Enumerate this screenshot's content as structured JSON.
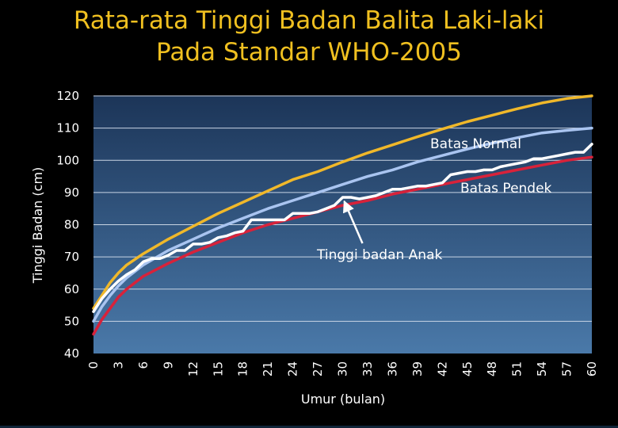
{
  "slide": {
    "title_line1": "Rata-rata Tinggi Badan Balita Laki-laki",
    "title_line2": "Pada Standar WHO-2005"
  },
  "colors": {
    "plot_bg_top": "#1c3558",
    "plot_bg_bottom": "#4a79a9",
    "upper": "#f0b82a",
    "median": "#a9c4f0",
    "lower": "#d8223a",
    "child": "#ffffff",
    "title": "#f0c020"
  },
  "chart_data": {
    "type": "line",
    "xlabel": "Umur (bulan)",
    "ylabel": "Tinggi Badan  (cm)",
    "xlim": [
      0,
      60
    ],
    "ylim": [
      40,
      120
    ],
    "grid": true,
    "x_ticks": [
      "0",
      "3",
      "6",
      "9",
      "12",
      "15",
      "18",
      "21",
      "24",
      "27",
      "30",
      "33",
      "36",
      "39",
      "42",
      "45",
      "48",
      "51",
      "54",
      "57",
      "60"
    ],
    "y_ticks": [
      "40",
      "50",
      "60",
      "70",
      "80",
      "90",
      "100",
      "110",
      "120"
    ],
    "series": [
      {
        "name": "upper",
        "color": "#f0b82a",
        "x": [
          0,
          1,
          2,
          3,
          4,
          6,
          9,
          12,
          15,
          18,
          21,
          24,
          27,
          30,
          33,
          36,
          39,
          42,
          45,
          48,
          51,
          54,
          57,
          60
        ],
        "y": [
          54,
          58,
          62,
          65,
          67.5,
          71,
          75.5,
          79.5,
          83.5,
          87,
          90.5,
          94,
          96.5,
          99.5,
          102.3,
          104.8,
          107.3,
          109.7,
          112,
          114,
          116,
          117.8,
          119.2,
          120
        ]
      },
      {
        "name": "Batas Normal",
        "color": "#a9c4f0",
        "x": [
          0,
          1,
          2,
          3,
          4,
          6,
          9,
          12,
          15,
          18,
          21,
          24,
          27,
          30,
          33,
          36,
          39,
          42,
          45,
          48,
          51,
          54,
          57,
          60
        ],
        "y": [
          50,
          54.5,
          58,
          61,
          63.5,
          67.5,
          72,
          75.5,
          79,
          82,
          85,
          87.5,
          90,
          92.5,
          95,
          97,
          99.5,
          101.5,
          103.5,
          105.3,
          107,
          108.5,
          109.3,
          110
        ]
      },
      {
        "name": "Batas Pendek",
        "color": "#d8223a",
        "x": [
          0,
          1,
          2,
          3,
          4,
          6,
          9,
          12,
          15,
          18,
          21,
          24,
          27,
          30,
          33,
          36,
          39,
          42,
          45,
          48,
          51,
          54,
          57,
          60
        ],
        "y": [
          46,
          50.5,
          54,
          57.5,
          60,
          64,
          68,
          71.5,
          74.5,
          77.5,
          80,
          82,
          84,
          86,
          87.5,
          89.5,
          91,
          92.5,
          94,
          95.5,
          97,
          98.5,
          100,
          101
        ]
      },
      {
        "name": "Tinggi badan Anak",
        "color": "#ffffff",
        "x": [
          0,
          1,
          2,
          3,
          4,
          5,
          6,
          7,
          8,
          9,
          10,
          11,
          12,
          13,
          14,
          15,
          16,
          17,
          18,
          19,
          20,
          21,
          22,
          23,
          24,
          25,
          26,
          27,
          28,
          29,
          30,
          31,
          32,
          33,
          34,
          35,
          36,
          37,
          38,
          39,
          40,
          41,
          42,
          43,
          44,
          45,
          46,
          47,
          48,
          49,
          50,
          51,
          52,
          53,
          54,
          55,
          56,
          57,
          58,
          59,
          60
        ],
        "y": [
          53,
          57,
          60,
          62.5,
          64.5,
          66,
          68.5,
          69.5,
          69.5,
          70.5,
          72,
          72,
          74,
          74,
          74.5,
          76,
          76.5,
          77.5,
          78,
          81.5,
          81.5,
          81.5,
          81.5,
          81.5,
          83.5,
          83.5,
          83.5,
          84,
          85,
          86,
          88.5,
          88.5,
          88,
          88.5,
          89,
          90,
          91,
          91,
          91.5,
          92,
          92,
          92.5,
          93,
          95.5,
          96,
          96.5,
          96.5,
          97,
          97,
          98,
          98.5,
          99,
          99.5,
          100.5,
          100.5,
          101,
          101.5,
          102,
          102.5,
          102.5,
          105
        ]
      }
    ],
    "annotations": [
      {
        "text": "Batas Normal",
        "target_series": "Batas Normal"
      },
      {
        "text": "Batas Pendek",
        "target_series": "Batas Pendek"
      },
      {
        "text": "Tinggi badan Anak",
        "target_series": "Tinggi badan Anak",
        "arrow_to": {
          "x": 30,
          "y": 88.5
        }
      }
    ]
  }
}
